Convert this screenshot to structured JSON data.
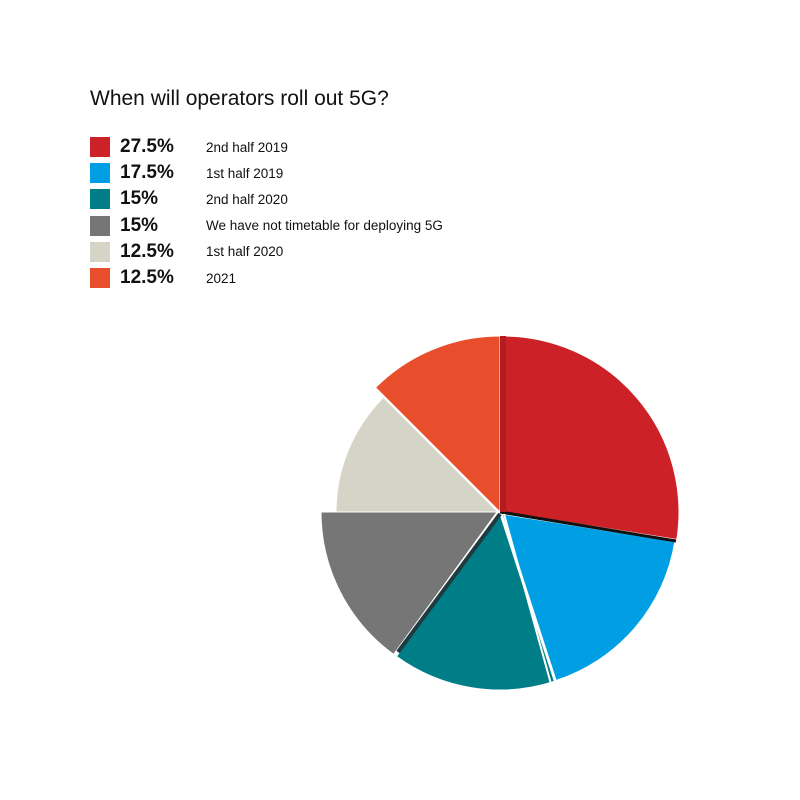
{
  "chart_data": {
    "type": "pie",
    "title": "When will operators roll out 5G?",
    "slices": [
      {
        "label": "2nd half 2019",
        "value": 27.5,
        "value_label": "27.5%",
        "color": "#cc2127"
      },
      {
        "label": "1st half 2019",
        "value": 17.5,
        "value_label": "17.5%",
        "color": "#009fe3"
      },
      {
        "label": "2nd half 2020",
        "value": 15,
        "value_label": "15%",
        "color": "#007e87"
      },
      {
        "label": "We have not timetable for deploying 5G",
        "value": 15,
        "value_label": "15%",
        "color": "#767676"
      },
      {
        "label": "1st half 2020",
        "value": 12.5,
        "value_label": "12.5%",
        "color": "#d6d4c6"
      },
      {
        "label": "2021",
        "value": 12.5,
        "value_label": "12.5%",
        "color": "#e84e2c"
      }
    ],
    "pie_order": [
      "2nd half 2019",
      "1st half 2019",
      "2nd half 2020",
      "We have not timetable for deploying 5G",
      "1st half 2020",
      "2021"
    ],
    "legend_position": "top-left"
  }
}
